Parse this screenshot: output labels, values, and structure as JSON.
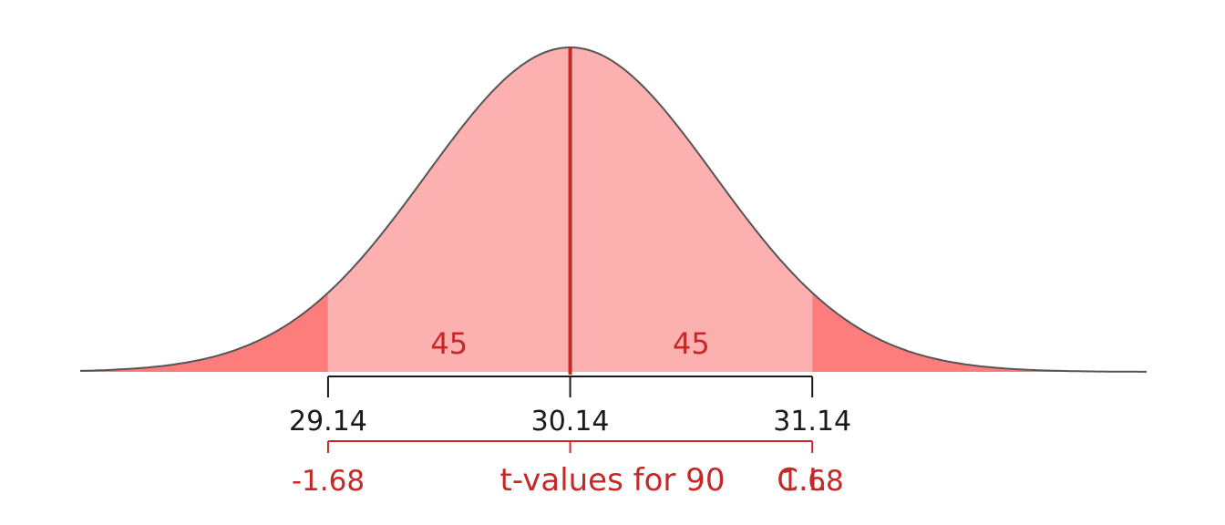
{
  "colors": {
    "central_fill": "#fdb0b0",
    "tail_fill": "#fd7d7d",
    "mean_line": "#c62828",
    "curve_stroke": "#555555",
    "axis": "#1a1a1a",
    "t_color": "#c62828",
    "background": "#ffffff"
  },
  "chart_data": {
    "type": "area",
    "distribution": "t",
    "x_range": [
      -3.4,
      4.0
    ],
    "critical_values": [
      -1.68,
      1.68
    ],
    "mean_value": 30.14,
    "x_ticks": [
      {
        "t": -1.68,
        "label": "29.14"
      },
      {
        "t": 0,
        "label": "30.14"
      },
      {
        "t": 1.68,
        "label": "31.14"
      }
    ],
    "t_ticks": [
      {
        "t": -1.68,
        "label": "-1.68"
      },
      {
        "t": 1.68,
        "label": "1.68"
      }
    ],
    "area_labels": [
      {
        "t": -0.84,
        "label": "45"
      },
      {
        "t": 0.84,
        "label": "45"
      }
    ],
    "caption_parts": [
      "t-values for 90",
      "C.I."
    ]
  }
}
